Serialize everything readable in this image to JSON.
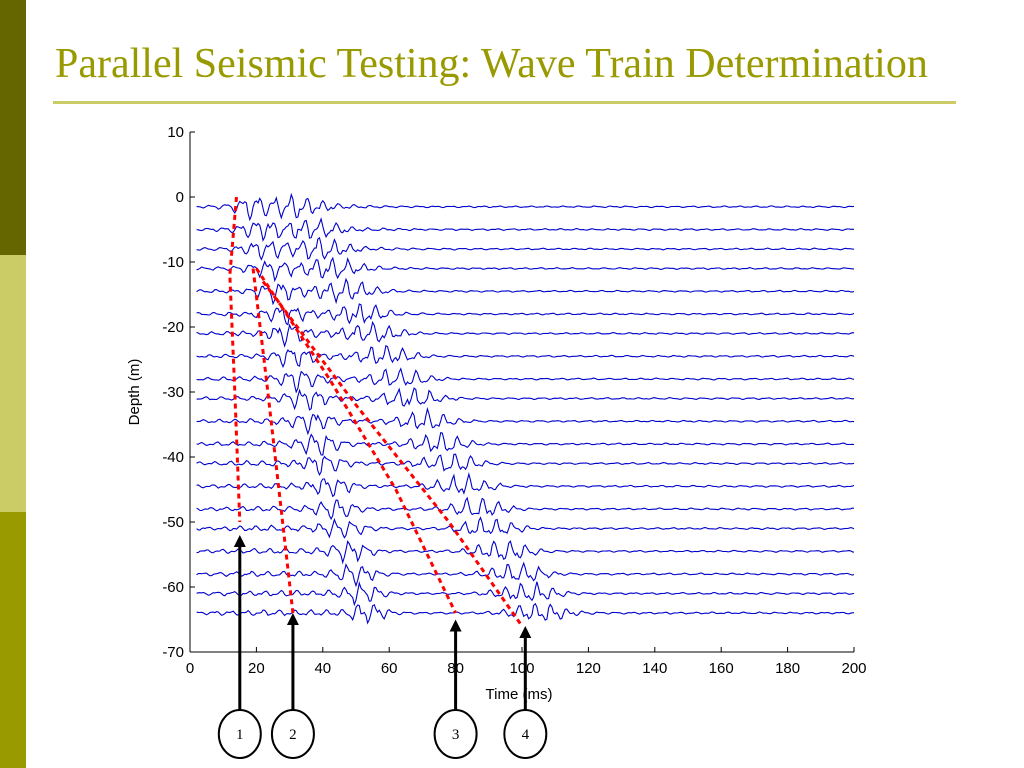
{
  "slide": {
    "title": "Parallel Seismic Testing: Wave Train Determination",
    "accent_dark": "#666600",
    "accent_light": "#cccc66",
    "accent_mid": "#999900"
  },
  "chart_data": {
    "type": "line",
    "title": "",
    "xlabel": "Time (ms)",
    "ylabel": "Depth (m)",
    "xlim": [
      0,
      200
    ],
    "ylim": [
      -70,
      10
    ],
    "xticks": [
      0,
      20,
      40,
      60,
      80,
      100,
      120,
      140,
      160,
      180,
      200
    ],
    "yticks": [
      10,
      0,
      -10,
      -20,
      -30,
      -40,
      -50,
      -60,
      -70
    ],
    "grid": false,
    "trace_color": "#0000cc",
    "trace_depths": [
      -1.5,
      -5,
      -8,
      -11,
      -14.5,
      -18,
      -21,
      -24.5,
      -28,
      -31,
      -34.5,
      -38,
      -41,
      -44.5,
      -48,
      -51,
      -54.5,
      -58,
      -61,
      -64
    ],
    "time_range": [
      0,
      200
    ],
    "wave_trains": [
      {
        "label": "1",
        "path": [
          [
            14,
            0
          ],
          [
            12,
            -12
          ],
          [
            13.5,
            -30
          ],
          [
            15,
            -50
          ]
        ],
        "arrow_tip": [
          15,
          -52
        ]
      },
      {
        "label": "2",
        "path": [
          [
            19,
            -11
          ],
          [
            23,
            -28
          ],
          [
            27,
            -46
          ],
          [
            31,
            -64
          ]
        ],
        "arrow_tip": [
          31,
          -64
        ]
      },
      {
        "label": "3",
        "path": [
          [
            20,
            -11
          ],
          [
            42,
            -28
          ],
          [
            62,
            -45
          ],
          [
            80,
            -64
          ]
        ],
        "arrow_tip": [
          80,
          -65
        ]
      },
      {
        "label": "4",
        "path": [
          [
            22,
            -13
          ],
          [
            50,
            -32
          ],
          [
            78,
            -50
          ],
          [
            100,
            -66
          ]
        ],
        "arrow_tip": [
          101,
          -66
        ]
      }
    ],
    "wave_train_color": "#ff0000"
  }
}
